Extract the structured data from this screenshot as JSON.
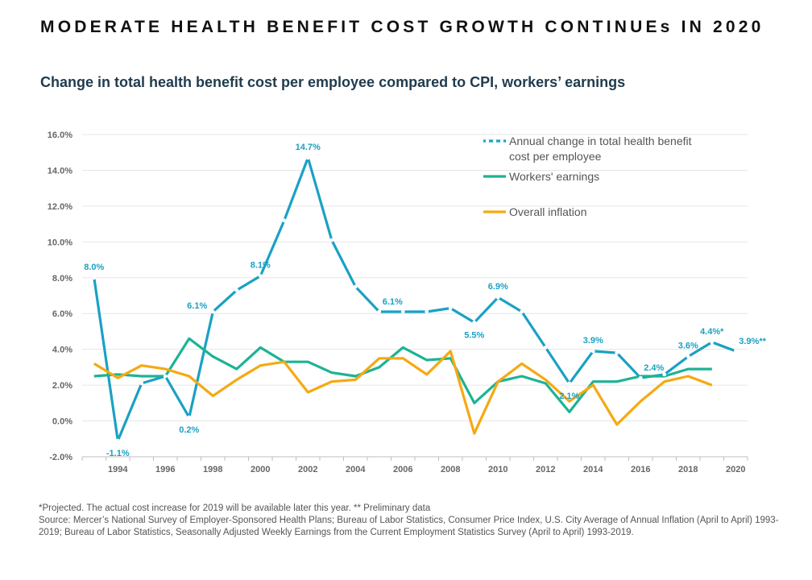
{
  "header": {
    "title": "MODERATE HEALTH BENEFIT COST GROWTH CONTINUEs IN 2020",
    "subtitle": "Change in total health benefit cost per employee compared to CPI, workers’ earnings"
  },
  "notes": {
    "projected": "*Projected. The actual cost increase for 2019 will be available later this year. ** Preliminary data",
    "source": "Source: Mercer’s National Survey of Employer-Sponsored Health Plans; Bureau of Labor Statistics, Consumer Price Index, U.S. City Average of Annual Inflation (April to April) 1993-2019; Bureau of Labor Statistics, Seasonally Adjusted Weekly Earnings from the Current Employment Statistics Survey (April to April) 1993-2019."
  },
  "chart_data": {
    "type": "line",
    "x": [
      1993,
      1994,
      1995,
      1996,
      1997,
      1998,
      1999,
      2000,
      2001,
      2002,
      2003,
      2004,
      2005,
      2006,
      2007,
      2008,
      2009,
      2010,
      2011,
      2012,
      2013,
      2014,
      2015,
      2016,
      2017,
      2018,
      2019,
      2020
    ],
    "xlim": [
      1992.5,
      2020.5
    ],
    "x_ticks": [
      "1994",
      "1996",
      "1998",
      "2000",
      "2002",
      "2004",
      "2006",
      "2008",
      "2010",
      "2012",
      "2014",
      "2016",
      "2018",
      "2020"
    ],
    "ylim": [
      -2,
      16
    ],
    "y_ticks": [
      "-2.0%",
      "0.0%",
      "2.0%",
      "4.0%",
      "6.0%",
      "8.0%",
      "10.0%",
      "12.0%",
      "14.0%",
      "16.0%"
    ],
    "grid": "horizontal",
    "legend_position": "top-right",
    "series": [
      {
        "name": "Annual change in total health benefit cost per employee",
        "color": "#1aa1c4",
        "style": "dotted-markers",
        "values": [
          8.0,
          -1.1,
          2.1,
          2.5,
          0.2,
          6.1,
          7.3,
          8.1,
          11.2,
          14.7,
          10.1,
          7.5,
          6.1,
          6.1,
          6.1,
          6.3,
          5.5,
          6.9,
          6.1,
          4.1,
          2.1,
          3.9,
          3.8,
          2.4,
          2.6,
          3.6,
          4.4,
          3.9
        ]
      },
      {
        "name": "Workers' earnings",
        "color": "#1db394",
        "style": "solid",
        "values": [
          2.5,
          2.6,
          2.5,
          2.5,
          4.6,
          3.6,
          2.9,
          4.1,
          3.3,
          3.3,
          2.7,
          2.5,
          3.0,
          4.1,
          3.4,
          3.5,
          1.0,
          2.2,
          2.5,
          2.1,
          0.5,
          2.2,
          2.2,
          2.5,
          2.5,
          2.9,
          2.9,
          null
        ]
      },
      {
        "name": "Overall inflation",
        "color": "#f5a911",
        "style": "solid",
        "values": [
          3.2,
          2.4,
          3.1,
          2.9,
          2.5,
          1.4,
          2.3,
          3.1,
          3.3,
          1.6,
          2.2,
          2.3,
          3.5,
          3.5,
          2.6,
          3.9,
          -0.7,
          2.2,
          3.2,
          2.3,
          1.1,
          2.0,
          -0.2,
          1.1,
          2.2,
          2.5,
          2.0,
          null
        ]
      }
    ],
    "data_labels": [
      {
        "x": 1993,
        "y": 8.0,
        "text": "8.0%",
        "pos": "above"
      },
      {
        "x": 1994,
        "y": -1.1,
        "text": "-1.1%",
        "pos": "below"
      },
      {
        "x": 1997,
        "y": 0.2,
        "text": "0.2%",
        "pos": "below"
      },
      {
        "x": 1998,
        "y": 6.1,
        "text": "6.1%",
        "pos": "left"
      },
      {
        "x": 2000,
        "y": 8.1,
        "text": "8.1%",
        "pos": "above"
      },
      {
        "x": 2002,
        "y": 14.7,
        "text": "14.7%",
        "pos": "above"
      },
      {
        "x": 2005,
        "y": 6.1,
        "text": "6.1%",
        "pos": "above-right"
      },
      {
        "x": 2009,
        "y": 5.5,
        "text": "5.5%",
        "pos": "below"
      },
      {
        "x": 2010,
        "y": 6.9,
        "text": "6.9%",
        "pos": "above"
      },
      {
        "x": 2013,
        "y": 2.1,
        "text": "2.1%",
        "pos": "below"
      },
      {
        "x": 2014,
        "y": 3.9,
        "text": "3.9%",
        "pos": "above"
      },
      {
        "x": 2016,
        "y": 2.4,
        "text": "2.4%",
        "pos": "above-right"
      },
      {
        "x": 2018,
        "y": 3.6,
        "text": "3.6%",
        "pos": "above"
      },
      {
        "x": 2019,
        "y": 4.4,
        "text": "4.4%*",
        "pos": "above"
      },
      {
        "x": 2020,
        "y": 3.9,
        "text": "3.9%**",
        "pos": "above-right"
      }
    ]
  }
}
